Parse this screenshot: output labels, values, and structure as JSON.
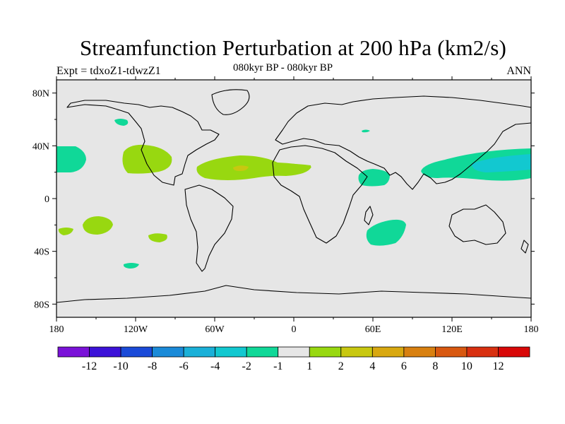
{
  "title": "Streamfunction Perturbation at 200 hPa (km2/s)",
  "left_label": "Expt = tdxoZ1-tdwzZ1",
  "center_label": "080kyr BP - 080kyr BP",
  "right_label": "ANN",
  "colors": {
    "land_bg": "#e6e6e6",
    "coast": "#000000",
    "palette": [
      "#7a12d8",
      "#3c12d8",
      "#1a4ad8",
      "#1a8ad8",
      "#1ab0d8",
      "#12c8d0",
      "#10d898",
      "#e6e6e6",
      "#98d810",
      "#c8c810",
      "#d8a810",
      "#d88010",
      "#d85810",
      "#d83010",
      "#d80808"
    ]
  },
  "colorbar": {
    "labels": [
      "-12",
      "-10",
      "-8",
      "-6",
      "-4",
      "-2",
      "-1",
      "1",
      "2",
      "4",
      "6",
      "8",
      "10",
      "12"
    ]
  },
  "axes": {
    "x_ticks": [
      "180",
      "120W",
      "60W",
      "0",
      "60E",
      "120E",
      "180"
    ],
    "y_ticks": [
      "80N",
      "40N",
      "0",
      "40S",
      "80S"
    ]
  },
  "chart_data": {
    "type": "heatmap",
    "projection": "cylindrical-equidistant",
    "lon_range": [
      -180,
      180
    ],
    "lat_range": [
      -90,
      90
    ],
    "contour_levels": [
      -12,
      -10,
      -8,
      -6,
      -4,
      -2,
      -1,
      1,
      2,
      4,
      6,
      8,
      10,
      12
    ],
    "anomalies": [
      {
        "region": "central north pacific",
        "lon": -170,
        "lat": 30,
        "value": -1.5
      },
      {
        "region": "north pacific small",
        "lon": -133,
        "lat": 58,
        "value": -1.5
      },
      {
        "region": "western north america",
        "lon": -115,
        "lat": 30,
        "value": 1.5
      },
      {
        "region": "tropical north atlantic",
        "lon": -40,
        "lat": 23,
        "value": 1.5
      },
      {
        "region": "tropical north atlantic core",
        "lon": -40,
        "lat": 23,
        "value": 3
      },
      {
        "region": "eastern north atlantic",
        "lon": -18,
        "lat": 22,
        "value": 1.5
      },
      {
        "region": "arabian sea",
        "lon": 60,
        "lat": 16,
        "value": -1.5
      },
      {
        "region": "caspian small",
        "lon": 52,
        "lat": 52,
        "value": -1.5
      },
      {
        "region": "western north pacific",
        "lon": 150,
        "lat": 24,
        "value": -1.5
      },
      {
        "region": "western north pacific core",
        "lon": 160,
        "lat": 27,
        "value": -3
      },
      {
        "region": "south pacific west",
        "lon": -142,
        "lat": -22,
        "value": 1.5
      },
      {
        "region": "south pacific far west",
        "lon": -175,
        "lat": -24,
        "value": 1.5
      },
      {
        "region": "south pacific east",
        "lon": -106,
        "lat": -30,
        "value": 1.5
      },
      {
        "region": "south pacific south",
        "lon": -126,
        "lat": -50,
        "value": -1.5
      },
      {
        "region": "southern indian ocean",
        "lon": 70,
        "lat": -26,
        "value": -1.5
      }
    ]
  }
}
